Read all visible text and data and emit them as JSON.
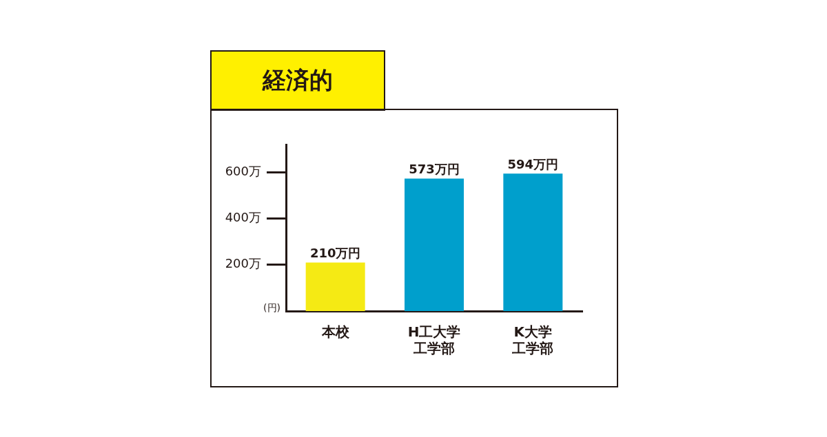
{
  "chart_data": {
    "type": "bar",
    "title": "経済的",
    "ylabel": "(円)",
    "categories": [
      "本校",
      "H工大学工学部",
      "K大学工学部"
    ],
    "values": [
      210,
      573,
      594
    ],
    "colors": [
      "#f5ea14",
      "#009fcc",
      "#009fcc"
    ],
    "value_labels": [
      "210万円",
      "573万円",
      "594万円"
    ],
    "ylim": [
      0,
      720
    ],
    "yticks": [
      {
        "value": 200,
        "label": "200万"
      },
      {
        "value": 400,
        "label": "400万"
      },
      {
        "value": 600,
        "label": "600万"
      }
    ],
    "legend": false
  }
}
